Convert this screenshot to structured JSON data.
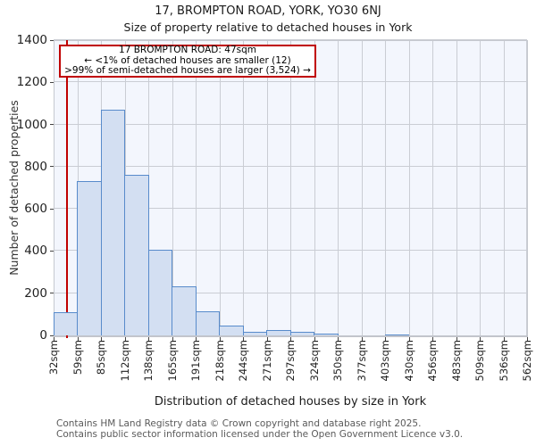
{
  "title": "17, BROMPTON ROAD, YORK, YO30 6NJ",
  "subtitle": "Size of property relative to detached houses in York",
  "annotation": {
    "line1": "17 BROMPTON ROAD: 47sqm",
    "line2": "← <1% of detached houses are smaller (12)",
    "line3": ">99% of semi-detached houses are larger (3,524) →"
  },
  "footer": {
    "line1": "Contains HM Land Registry data © Crown copyright and database right 2025.",
    "line2": "Contains public sector information licensed under the Open Government Licence v3.0."
  },
  "chart_data": {
    "type": "bar",
    "title": "17, BROMPTON ROAD, YORK, YO30 6NJ",
    "subtitle": "Size of property relative to detached houses in York",
    "xlabel": "Distribution of detached houses by size in York",
    "ylabel": "Number of detached properties",
    "categories": [
      "32sqm",
      "59sqm",
      "85sqm",
      "112sqm",
      "138sqm",
      "165sqm",
      "191sqm",
      "218sqm",
      "244sqm",
      "271sqm",
      "297sqm",
      "324sqm",
      "350sqm",
      "377sqm",
      "403sqm",
      "430sqm",
      "456sqm",
      "483sqm",
      "509sqm",
      "536sqm",
      "562sqm"
    ],
    "bin_edges_sqm": [
      32,
      59,
      85,
      112,
      138,
      165,
      191,
      218,
      244,
      271,
      297,
      324,
      350,
      377,
      403,
      430,
      456,
      483,
      509,
      536,
      562
    ],
    "values": [
      110,
      730,
      1070,
      760,
      405,
      232,
      115,
      45,
      18,
      26,
      18,
      7,
      0,
      0,
      6,
      0,
      0,
      0,
      0,
      0
    ],
    "ylim": [
      0,
      1400
    ],
    "yticks": [
      0,
      200,
      400,
      600,
      800,
      1000,
      1200,
      1400
    ],
    "xlim_sqm": [
      32,
      562
    ],
    "grid": true,
    "legend_position": "none",
    "marker": {
      "label": "17 BROMPTON ROAD",
      "x_sqm": 47,
      "color": "#c00000"
    },
    "colors": {
      "bar_fill": "#d3dff2",
      "bar_edge": "#588bcb",
      "plot_bg": "#f3f6fd",
      "grid": "#cacdd4",
      "marker": "#c00000",
      "text": "#1a1a1a",
      "footer_text": "#5a5a5a"
    }
  }
}
